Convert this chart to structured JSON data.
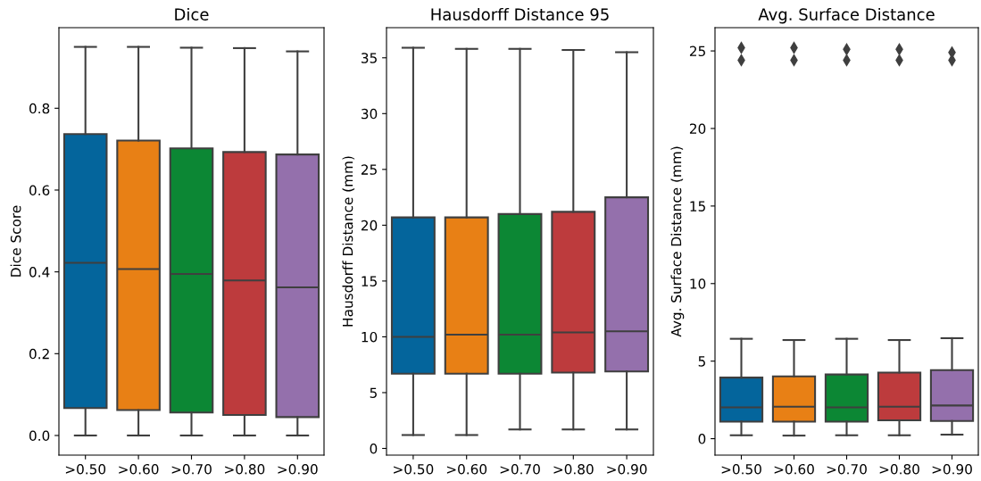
{
  "chart_data": [
    {
      "type": "box",
      "title": "Dice",
      "ylabel": "Dice Score",
      "categories": [
        ">0.50",
        ">0.60",
        ">0.70",
        ">0.80",
        ">0.90"
      ],
      "colors": [
        "#04659c",
        "#e88015",
        "#0c8734",
        "#bd3b3d",
        "#9470ac"
      ],
      "ylim": [
        -0.048,
        0.997
      ],
      "yticks": [
        {
          "value": 0,
          "label": "0.0"
        },
        0.2,
        0.4,
        0.6,
        0.8
      ],
      "grid": false,
      "legend": false,
      "boxes": [
        {
          "low": 0,
          "q1": 0.067,
          "median": 0.422,
          "q3": 0.737,
          "high": 0.95
        },
        {
          "low": 0,
          "q1": 0.062,
          "median": 0.407,
          "q3": 0.721,
          "high": 0.95
        },
        {
          "low": 0,
          "q1": 0.056,
          "median": 0.395,
          "q3": 0.702,
          "high": 0.948
        },
        {
          "low": 0,
          "q1": 0.05,
          "median": 0.379,
          "q3": 0.693,
          "high": 0.947
        },
        {
          "low": 0,
          "q1": 0.045,
          "median": 0.362,
          "q3": 0.687,
          "high": 0.939
        }
      ]
    },
    {
      "type": "box",
      "title": "Hausdorff Distance 95",
      "ylabel": "Hausdorff Distance (mm)",
      "categories": [
        ">0.50",
        ">0.60",
        ">0.70",
        ">0.80",
        ">0.90"
      ],
      "colors": [
        "#04659c",
        "#e88015",
        "#0c8734",
        "#bd3b3d",
        "#9470ac"
      ],
      "ylim": [
        -0.6,
        37.7
      ],
      "yticks": [
        0,
        5,
        10,
        15,
        20,
        25,
        30,
        35
      ],
      "grid": false,
      "legend": false,
      "boxes": [
        {
          "low": 1.2,
          "q1": 6.7,
          "median": 10.0,
          "q3": 20.7,
          "high": 35.9
        },
        {
          "low": 1.2,
          "q1": 6.7,
          "median": 10.2,
          "q3": 20.7,
          "high": 35.8
        },
        {
          "low": 1.7,
          "q1": 6.7,
          "median": 10.2,
          "q3": 21.0,
          "high": 35.8
        },
        {
          "low": 1.7,
          "q1": 6.8,
          "median": 10.4,
          "q3": 21.2,
          "high": 35.7
        },
        {
          "low": 1.7,
          "q1": 6.9,
          "median": 10.5,
          "q3": 22.5,
          "high": 35.5
        }
      ]
    },
    {
      "type": "box",
      "title": "Avg. Surface Distance",
      "ylabel": "Avg. Surface Distance (mm)",
      "categories": [
        ">0.50",
        ">0.60",
        ">0.70",
        ">0.80",
        ">0.90"
      ],
      "colors": [
        "#04659c",
        "#e88015",
        "#0c8734",
        "#bd3b3d",
        "#9470ac"
      ],
      "ylim": [
        -1.06,
        26.5
      ],
      "yticks": [
        0,
        5,
        10,
        15,
        20,
        25
      ],
      "grid": false,
      "legend": false,
      "marker": "diamond",
      "boxes": [
        {
          "low": 0.22,
          "q1": 1.1,
          "median": 2.02,
          "q3": 3.94,
          "high": 6.44,
          "outliers": [
            25.2,
            24.4
          ]
        },
        {
          "low": 0.2,
          "q1": 1.1,
          "median": 2.06,
          "q3": 4.02,
          "high": 6.36,
          "outliers": [
            25.2,
            24.4
          ]
        },
        {
          "low": 0.22,
          "q1": 1.1,
          "median": 2.02,
          "q3": 4.14,
          "high": 6.44,
          "outliers": [
            25.1,
            24.4
          ]
        },
        {
          "low": 0.22,
          "q1": 1.18,
          "median": 2.06,
          "q3": 4.26,
          "high": 6.36,
          "outliers": [
            25.1,
            24.4
          ]
        },
        {
          "low": 0.26,
          "q1": 1.14,
          "median": 2.14,
          "q3": 4.42,
          "high": 6.48,
          "outliers": [
            24.9,
            24.4
          ]
        }
      ]
    }
  ]
}
